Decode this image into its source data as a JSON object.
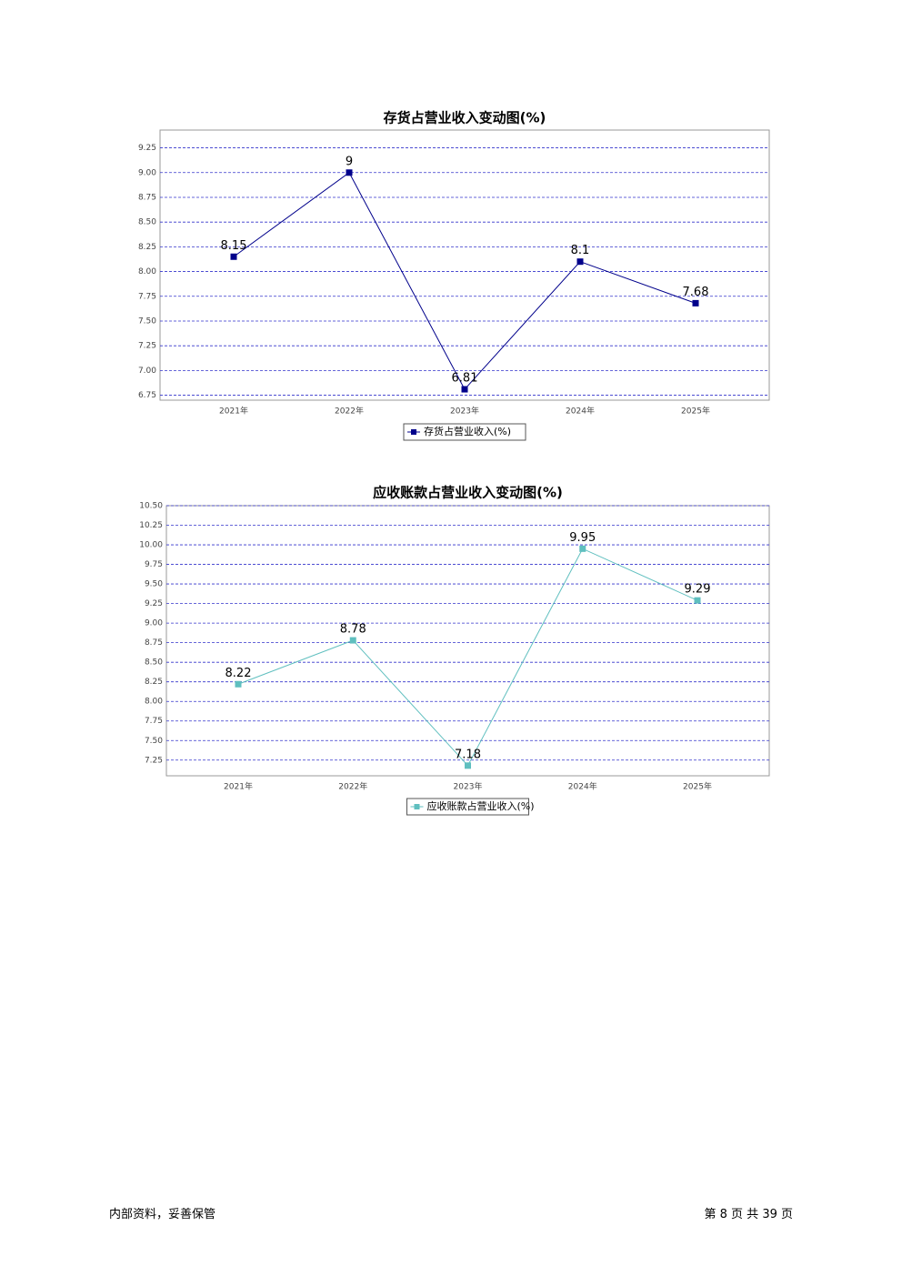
{
  "chart_data": [
    {
      "type": "line",
      "title": "存货占营业收入变动图(%)",
      "categories": [
        "2021年",
        "2022年",
        "2023年",
        "2024年",
        "2025年"
      ],
      "series": [
        {
          "name": "存货占营业收入(%)",
          "color": "#00008b",
          "values": [
            8.15,
            9,
            6.81,
            8.1,
            7.68
          ]
        }
      ],
      "ylim": [
        6.7,
        9.43
      ],
      "yticks": [
        6.75,
        {
          "value": 7,
          "label": "7.00"
        },
        7.25,
        {
          "value": 7.5,
          "label": "7.50"
        },
        7.75,
        {
          "value": 8,
          "label": "8.00"
        },
        8.25,
        {
          "value": 8.5,
          "label": "8.50"
        },
        8.75,
        {
          "value": 9,
          "label": "9.00"
        },
        9.25
      ],
      "grid": true,
      "legend": "bottom"
    },
    {
      "type": "line",
      "title": "应收账款占营业收入变动图(%)",
      "categories": [
        "2021年",
        "2022年",
        "2023年",
        "2024年",
        "2025年"
      ],
      "series": [
        {
          "name": "应收账款占营业收入(%)",
          "color": "#5fbfbf",
          "values": [
            8.22,
            8.78,
            7.18,
            9.95,
            9.29
          ]
        }
      ],
      "ylim": [
        7.05,
        10.5
      ],
      "yticks": [
        7.25,
        {
          "value": 7.5,
          "label": "7.50"
        },
        7.75,
        {
          "value": 8,
          "label": "8.00"
        },
        8.25,
        {
          "value": 8.5,
          "label": "8.50"
        },
        8.75,
        {
          "value": 9,
          "label": "9.00"
        },
        9.25,
        {
          "value": 9.5,
          "label": "9.50"
        },
        9.75,
        {
          "value": 10,
          "label": "10.00"
        },
        10.25,
        {
          "value": 10.5,
          "label": "10.50"
        }
      ],
      "grid": true,
      "legend": "bottom"
    }
  ],
  "footer": {
    "left": "内部资料，妥善保管",
    "right": "第 8 页  共 39 页"
  }
}
